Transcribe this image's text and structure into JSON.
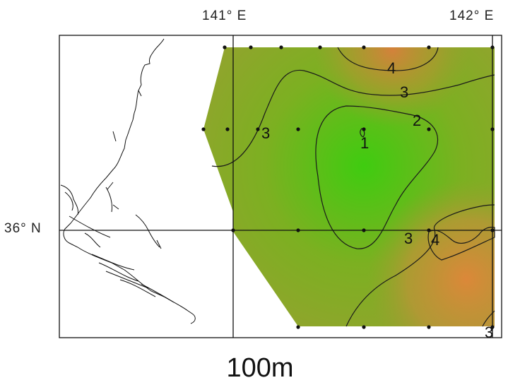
{
  "map": {
    "lon_labels": [
      "141° E",
      "142° E"
    ],
    "lat_labels": [
      "36° N"
    ],
    "depth_label": "100m",
    "contour_levels": [
      "4",
      "3",
      "2",
      "1",
      "3",
      "3",
      "4",
      "3"
    ],
    "colors": {
      "low": "#3fcc10",
      "mid": "#8fa52c",
      "high": "#d68a3c",
      "background": "#ffffff"
    },
    "stations": [
      {
        "lon": 140.98,
        "lat": 36.95
      },
      {
        "lon": 141.12,
        "lat": 36.95
      },
      {
        "lon": 141.35,
        "lat": 36.95
      },
      {
        "lon": 141.62,
        "lat": 36.95
      },
      {
        "lon": 141.95,
        "lat": 36.95
      },
      {
        "lon": 142.45,
        "lat": 36.95
      },
      {
        "lon": 142.98,
        "lat": 36.95
      },
      {
        "lon": 140.82,
        "lat": 36.55
      },
      {
        "lon": 140.98,
        "lat": 36.55
      },
      {
        "lon": 141.25,
        "lat": 36.55
      },
      {
        "lon": 141.52,
        "lat": 36.55
      },
      {
        "lon": 142.0,
        "lat": 36.55
      },
      {
        "lon": 142.5,
        "lat": 36.55
      },
      {
        "lon": 142.98,
        "lat": 36.55
      },
      {
        "lon": 141.0,
        "lat": 36.0
      },
      {
        "lon": 141.5,
        "lat": 36.0
      },
      {
        "lon": 142.0,
        "lat": 36.0
      },
      {
        "lon": 142.5,
        "lat": 36.0
      },
      {
        "lon": 142.98,
        "lat": 36.0
      },
      {
        "lon": 141.5,
        "lat": 35.5
      },
      {
        "lon": 142.0,
        "lat": 35.5
      },
      {
        "lon": 142.5,
        "lat": 35.5
      },
      {
        "lon": 142.98,
        "lat": 35.5
      }
    ]
  }
}
